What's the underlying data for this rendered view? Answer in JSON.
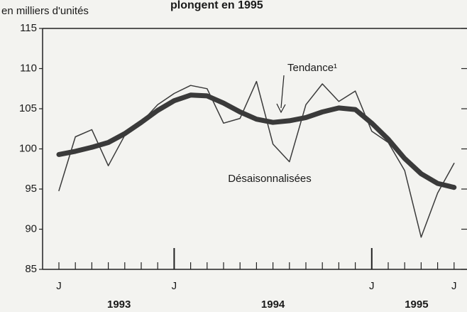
{
  "chart_data": {
    "type": "line",
    "title": "plongent en 1995",
    "y_label": "en milliers d'unités",
    "categories": [
      "J",
      null,
      null,
      null,
      null,
      null,
      null,
      "J",
      null,
      null,
      null,
      null,
      null,
      null,
      null,
      null,
      null,
      null,
      null,
      "J",
      null,
      null,
      null,
      null,
      "J"
    ],
    "year_labels": [
      "1993",
      "1994",
      "1995"
    ],
    "series": [
      {
        "name": "Désaisonnalisées",
        "color": "#3a3a3a",
        "values": [
          94.8,
          101.5,
          102.4,
          97.9,
          101.7,
          103.3,
          105.5,
          106.9,
          107.9,
          107.5,
          103.2,
          103.8,
          108.4,
          100.6,
          98.4,
          105.5,
          108.1,
          105.9,
          107.2,
          102.2,
          100.8,
          97.3,
          89.0,
          94.5,
          98.2
        ]
      },
      {
        "name": "Tendance¹",
        "color": "#3a3a3a",
        "values": [
          99.3,
          99.7,
          100.2,
          100.8,
          101.9,
          103.3,
          104.8,
          106.0,
          106.7,
          106.6,
          105.7,
          104.6,
          103.7,
          103.3,
          103.5,
          103.9,
          104.6,
          105.1,
          104.9,
          103.2,
          101.2,
          98.8,
          96.9,
          95.7,
          95.2
        ]
      }
    ],
    "ylim": [
      85,
      115
    ],
    "yticks": [
      85,
      90,
      95,
      100,
      105,
      110,
      115
    ]
  }
}
